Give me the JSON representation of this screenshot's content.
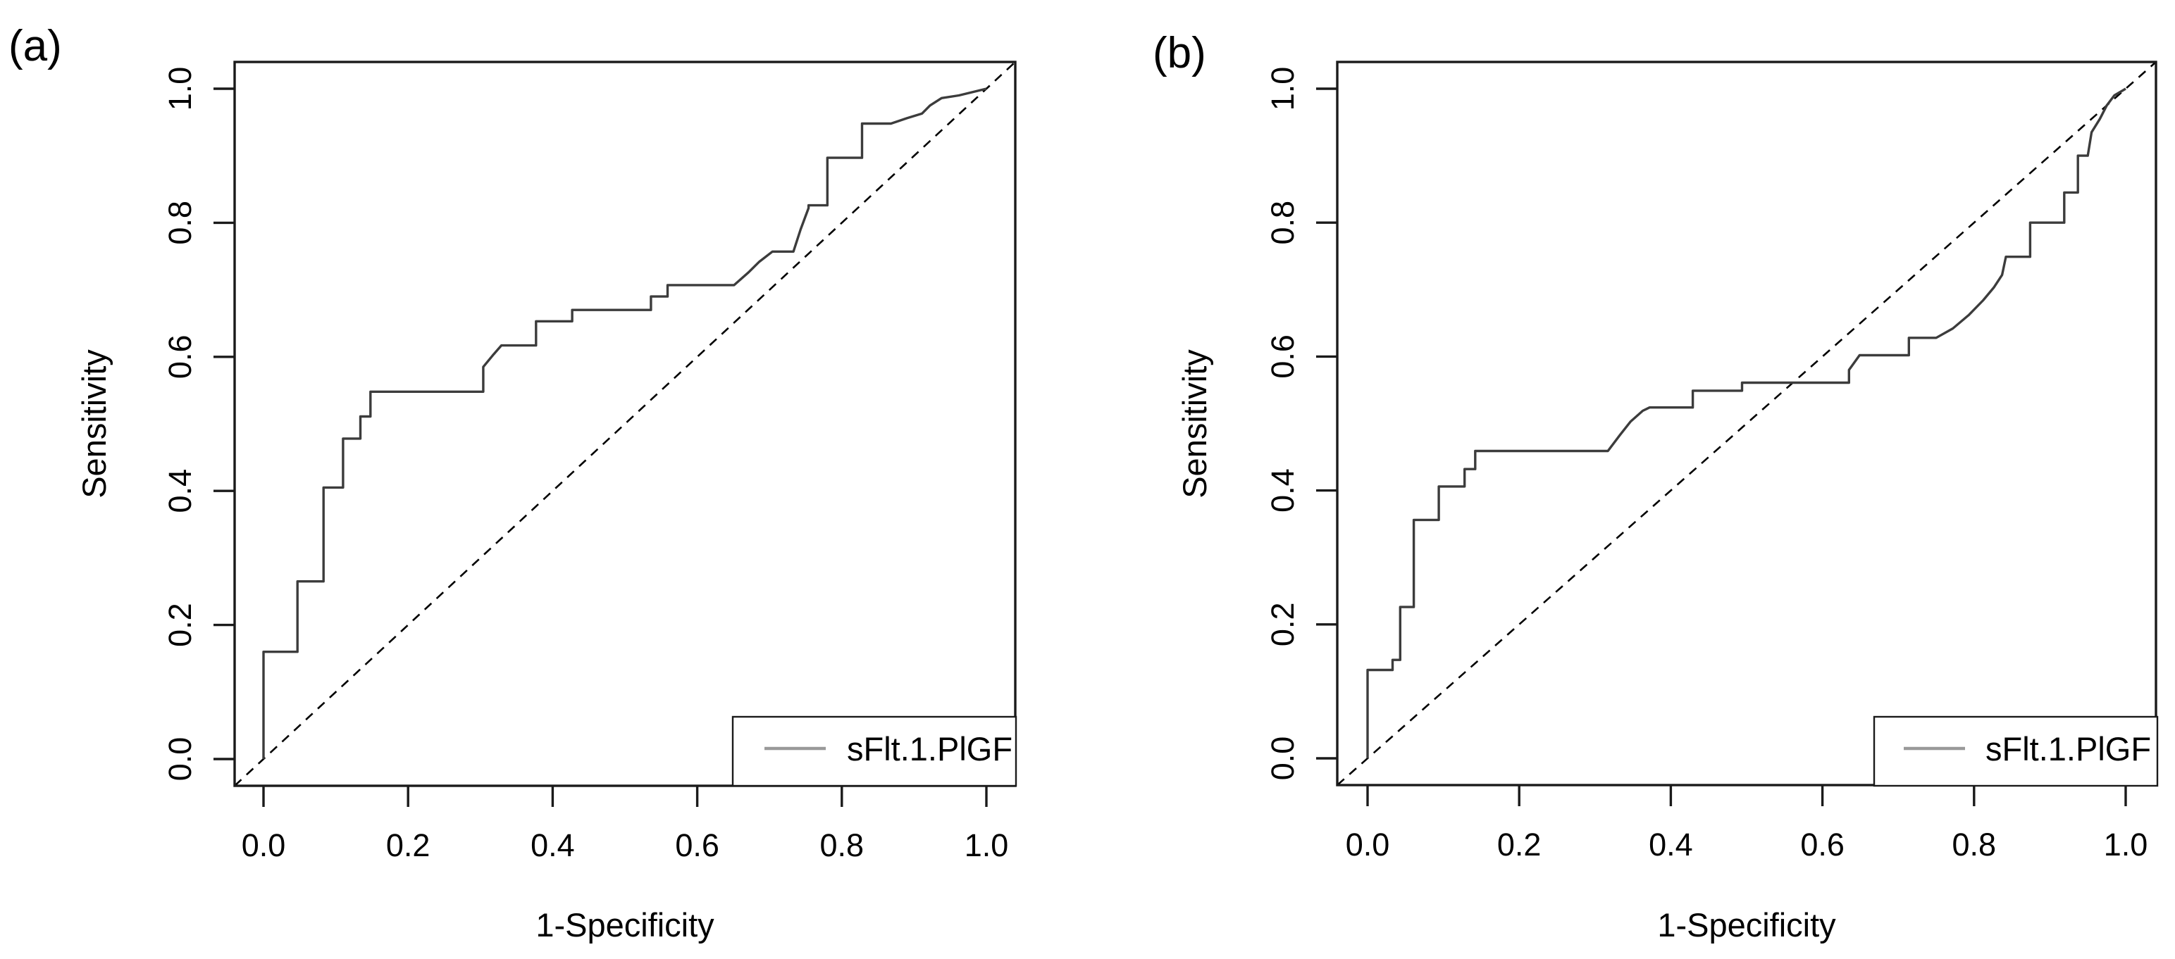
{
  "figure": {
    "background": "#ffffff",
    "panels": [
      "(a)",
      "(b)"
    ]
  },
  "colors": {
    "curve": "#3c3c3c",
    "diagonal": "#000000",
    "box": "#1a1a1a",
    "legend_line": "#999999",
    "text": "#000000"
  },
  "chart_data": [
    {
      "type": "line",
      "subtype": "roc-step-curve",
      "panel_label": "(a)",
      "xlabel": "1-Specificity",
      "ylabel": "Sensitivity",
      "xlim": [
        -0.04,
        1.04
      ],
      "ylim": [
        -0.04,
        1.04
      ],
      "grid": false,
      "tick_values": [
        0.0,
        0.2,
        0.4,
        0.6,
        0.8,
        1.0
      ],
      "x_tick_labels": [
        "0.0",
        "0.2",
        "0.4",
        "0.6",
        "0.8",
        "1.0"
      ],
      "y_tick_labels": [
        "0.0",
        "0.2",
        "0.4",
        "0.6",
        "0.8",
        "1.0"
      ],
      "diagonal_reference": "dashed line from (0,0) to (1,1)",
      "legend": {
        "position": "bottomright",
        "label": "sFlt.1.PlGF"
      },
      "series": [
        {
          "name": "sFlt.1.PlGF",
          "points": [
            [
              0,
              0
            ],
            [
              0,
              0.16
            ],
            [
              0.047,
              0.16
            ],
            [
              0.047,
              0.265
            ],
            [
              0.083,
              0.265
            ],
            [
              0.083,
              0.405
            ],
            [
              0.11,
              0.405
            ],
            [
              0.11,
              0.478
            ],
            [
              0.134,
              0.478
            ],
            [
              0.134,
              0.511
            ],
            [
              0.148,
              0.511
            ],
            [
              0.148,
              0.548
            ],
            [
              0.304,
              0.548
            ],
            [
              0.304,
              0.585
            ],
            [
              0.317,
              0.602
            ],
            [
              0.329,
              0.617
            ],
            [
              0.377,
              0.617
            ],
            [
              0.377,
              0.653
            ],
            [
              0.427,
              0.653
            ],
            [
              0.427,
              0.67
            ],
            [
              0.536,
              0.67
            ],
            [
              0.536,
              0.69
            ],
            [
              0.559,
              0.69
            ],
            [
              0.559,
              0.707
            ],
            [
              0.651,
              0.707
            ],
            [
              0.671,
              0.726
            ],
            [
              0.686,
              0.742
            ],
            [
              0.704,
              0.757
            ],
            [
              0.733,
              0.757
            ],
            [
              0.743,
              0.79
            ],
            [
              0.754,
              0.822
            ],
            [
              0.754,
              0.826
            ],
            [
              0.78,
              0.826
            ],
            [
              0.78,
              0.897
            ],
            [
              0.828,
              0.897
            ],
            [
              0.828,
              0.948
            ],
            [
              0.868,
              0.948
            ],
            [
              0.89,
              0.956
            ],
            [
              0.911,
              0.963
            ],
            [
              0.922,
              0.975
            ],
            [
              0.938,
              0.986
            ],
            [
              0.962,
              0.99
            ],
            [
              1,
              1
            ]
          ]
        }
      ]
    },
    {
      "type": "line",
      "subtype": "roc-step-curve",
      "panel_label": "(b)",
      "xlabel": "1-Specificity",
      "ylabel": "Sensitivity",
      "xlim": [
        -0.04,
        1.04
      ],
      "ylim": [
        -0.04,
        1.04
      ],
      "grid": false,
      "tick_values": [
        0.0,
        0.2,
        0.4,
        0.6,
        0.8,
        1.0
      ],
      "x_tick_labels": [
        "0.0",
        "0.2",
        "0.4",
        "0.6",
        "0.8",
        "1.0"
      ],
      "y_tick_labels": [
        "0.0",
        "0.2",
        "0.4",
        "0.6",
        "0.8",
        "1.0"
      ],
      "diagonal_reference": "dashed line from (0,0) to (1,1)",
      "legend": {
        "position": "bottomright",
        "label": "sFlt.1.PlGF"
      },
      "series": [
        {
          "name": "sFlt.1.PlGF",
          "points": [
            [
              0,
              0
            ],
            [
              0,
              0.132
            ],
            [
              0.033,
              0.132
            ],
            [
              0.033,
              0.147
            ],
            [
              0.043,
              0.147
            ],
            [
              0.043,
              0.226
            ],
            [
              0.061,
              0.226
            ],
            [
              0.061,
              0.356
            ],
            [
              0.094,
              0.356
            ],
            [
              0.094,
              0.406
            ],
            [
              0.128,
              0.406
            ],
            [
              0.128,
              0.432
            ],
            [
              0.142,
              0.432
            ],
            [
              0.142,
              0.459
            ],
            [
              0.317,
              0.459
            ],
            [
              0.333,
              0.483
            ],
            [
              0.347,
              0.503
            ],
            [
              0.363,
              0.519
            ],
            [
              0.372,
              0.524
            ],
            [
              0.429,
              0.524
            ],
            [
              0.429,
              0.549
            ],
            [
              0.494,
              0.549
            ],
            [
              0.494,
              0.561
            ],
            [
              0.635,
              0.561
            ],
            [
              0.635,
              0.58
            ],
            [
              0.649,
              0.602
            ],
            [
              0.714,
              0.602
            ],
            [
              0.714,
              0.628
            ],
            [
              0.75,
              0.628
            ],
            [
              0.772,
              0.642
            ],
            [
              0.793,
              0.662
            ],
            [
              0.812,
              0.684
            ],
            [
              0.826,
              0.703
            ],
            [
              0.837,
              0.722
            ],
            [
              0.842,
              0.749
            ],
            [
              0.874,
              0.749
            ],
            [
              0.874,
              0.8
            ],
            [
              0.919,
              0.8
            ],
            [
              0.919,
              0.845
            ],
            [
              0.937,
              0.845
            ],
            [
              0.937,
              0.9
            ],
            [
              0.95,
              0.9
            ],
            [
              0.955,
              0.935
            ],
            [
              0.966,
              0.955
            ],
            [
              0.975,
              0.975
            ],
            [
              0.985,
              0.99
            ],
            [
              1,
              1
            ]
          ]
        }
      ]
    }
  ]
}
